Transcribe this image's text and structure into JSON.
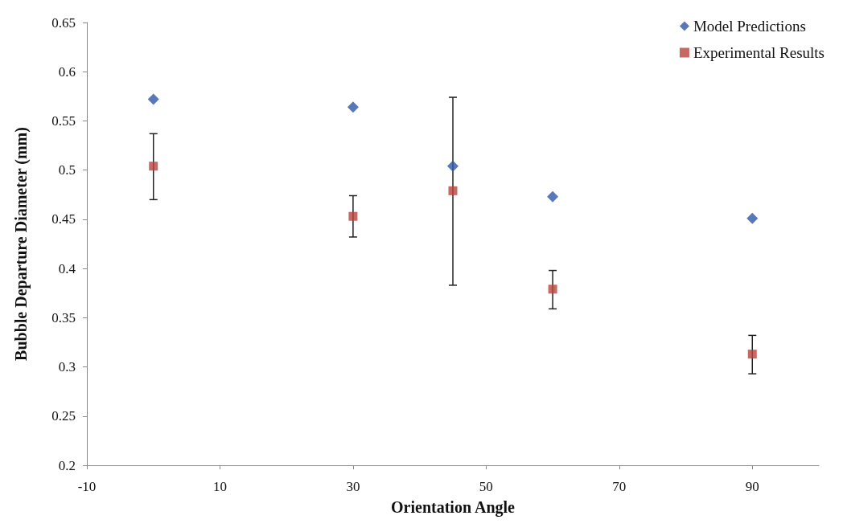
{
  "chart_data": {
    "type": "scatter",
    "xlabel": "Orientation Angle",
    "ylabel": "Bubble Departure Diameter (mm)",
    "xlim": [
      -10,
      100
    ],
    "xticks": [
      -10,
      10,
      30,
      50,
      70,
      90
    ],
    "ylim": [
      0.2,
      0.65
    ],
    "yticks": [
      0.2,
      0.25,
      0.3,
      0.35,
      0.4,
      0.45,
      0.5,
      0.55,
      0.6,
      0.65
    ],
    "grid": false,
    "legend": "top right",
    "series": [
      {
        "name": "Model Predictions",
        "color": "#2f56a6",
        "marker": "diamond",
        "x": [
          0,
          30,
          45,
          60,
          90
        ],
        "values": [
          0.572,
          0.564,
          0.504,
          0.473,
          0.451
        ]
      },
      {
        "name": "Experimental Results",
        "color": "#b8443c",
        "marker": "square",
        "x": [
          0,
          30,
          45,
          60,
          90
        ],
        "values": [
          0.504,
          0.453,
          0.479,
          0.379,
          0.313
        ],
        "errors": [
          [
            0.47,
            0.537
          ],
          [
            0.432,
            0.474
          ],
          [
            0.383,
            0.574
          ],
          [
            0.359,
            0.398
          ],
          [
            0.293,
            0.332
          ]
        ]
      }
    ]
  }
}
